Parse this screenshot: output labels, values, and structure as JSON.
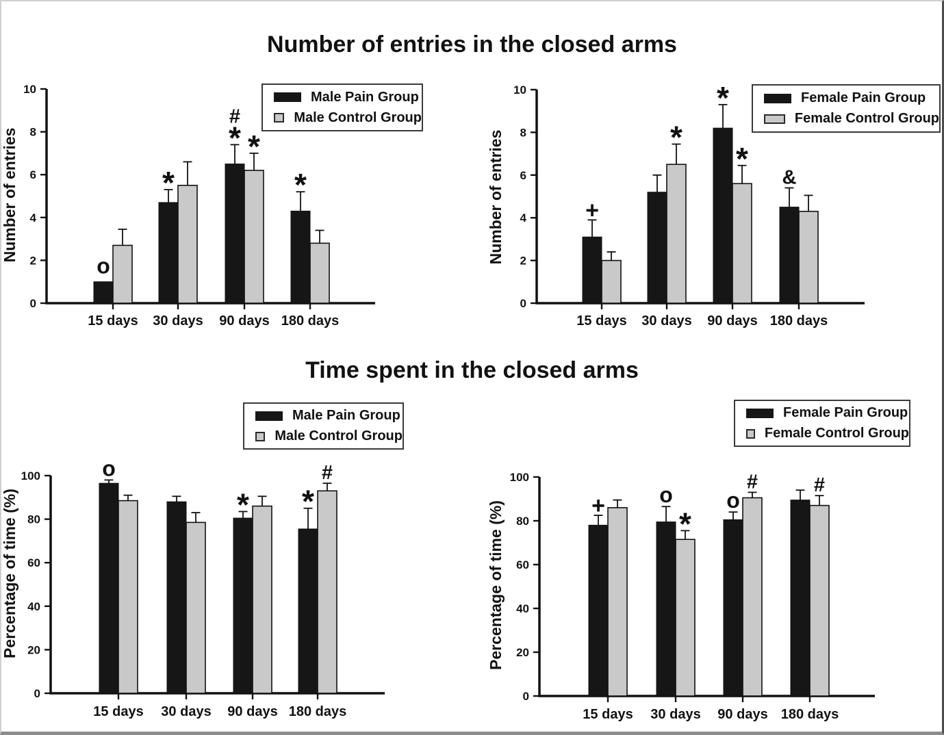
{
  "page": {
    "entries_title": "Number of entries in the closed arms",
    "time_title": "Time spent in the closed arms"
  },
  "colors": {
    "pain": "#161616",
    "control": "#c9c9c9",
    "axis": "#111111"
  },
  "chart_data": [
    {
      "id": "entries-male",
      "type": "bar",
      "section_title": "Number of entries in the closed arms",
      "ylabel": "Number of entries",
      "categories": [
        "15 days",
        "30 days",
        "90 days",
        "180 days"
      ],
      "ylim": [
        0,
        10
      ],
      "yticks": [
        0,
        2,
        4,
        6,
        8,
        10
      ],
      "grid": false,
      "legend_position": "top-right-inside",
      "series": [
        {
          "name": "Male Pain Group",
          "color": "#161616",
          "values": [
            1,
            4.7,
            6.5,
            4.3
          ],
          "errors": [
            0,
            0.6,
            0.9,
            0.9
          ],
          "annotations": [
            [
              "o"
            ],
            [
              "*"
            ],
            [
              "#",
              "*"
            ],
            [
              "*"
            ]
          ]
        },
        {
          "name": "Male Control Group",
          "color": "#c9c9c9",
          "values": [
            2.7,
            5.5,
            6.2,
            2.8
          ],
          "errors": [
            0.75,
            1.1,
            0.8,
            0.6
          ],
          "annotations": [
            [],
            [],
            [
              "*"
            ],
            []
          ]
        }
      ]
    },
    {
      "id": "entries-female",
      "type": "bar",
      "section_title": "Number of entries in the closed arms",
      "ylabel": "Number of entries",
      "categories": [
        "15 days",
        "30 days",
        "90 days",
        "180 days"
      ],
      "ylim": [
        0,
        10
      ],
      "yticks": [
        0,
        2,
        4,
        6,
        8,
        10
      ],
      "grid": false,
      "legend_position": "top-right-inside",
      "series": [
        {
          "name": "Female Pain Group",
          "color": "#161616",
          "values": [
            3.1,
            5.2,
            8.2,
            4.5
          ],
          "errors": [
            0.8,
            0.8,
            1.1,
            0.9
          ],
          "annotations": [
            [
              "+"
            ],
            [],
            [
              "*"
            ],
            [
              "&"
            ]
          ]
        },
        {
          "name": "Female Control Group",
          "color": "#c9c9c9",
          "values": [
            2,
            6.5,
            5.6,
            4.3
          ],
          "errors": [
            0.4,
            0.95,
            0.85,
            0.75
          ],
          "annotations": [
            [],
            [
              "*"
            ],
            [
              "*"
            ],
            []
          ]
        }
      ]
    },
    {
      "id": "time-male",
      "type": "bar",
      "section_title": "Time spent in the closed arms",
      "ylabel": "Percentage of time (%)",
      "categories": [
        "15 days",
        "30 days",
        "90 days",
        "180 days"
      ],
      "ylim": [
        0,
        100
      ],
      "yticks": [
        0,
        20,
        40,
        60,
        80,
        100
      ],
      "grid": false,
      "legend_position": "top-left-inside",
      "series": [
        {
          "name": "Male Pain Group",
          "color": "#161616",
          "values": [
            96.5,
            88,
            80.5,
            75.5
          ],
          "errors": [
            1.5,
            2.5,
            3,
            9.5
          ],
          "annotations": [
            [
              "o"
            ],
            [],
            [
              "*"
            ],
            [
              "*"
            ]
          ]
        },
        {
          "name": "Male Control Group",
          "color": "#c9c9c9",
          "values": [
            88.5,
            78.5,
            86,
            93
          ],
          "errors": [
            2.5,
            4.5,
            4.5,
            3.5
          ],
          "annotations": [
            [],
            [],
            [],
            [
              "#"
            ]
          ]
        }
      ]
    },
    {
      "id": "time-female",
      "type": "bar",
      "section_title": "Time spent in the closed arms",
      "ylabel": "Percentage of time (%)",
      "categories": [
        "15 days",
        "30 days",
        "90 days",
        "180 days"
      ],
      "ylim": [
        0,
        100
      ],
      "yticks": [
        0,
        20,
        40,
        60,
        80,
        100
      ],
      "grid": false,
      "legend_position": "top-right-inside",
      "series": [
        {
          "name": "Female Pain Group",
          "color": "#161616",
          "values": [
            78,
            79.5,
            80.5,
            89.5
          ],
          "errors": [
            4.5,
            7,
            3.5,
            4.5
          ],
          "annotations": [
            [
              "+"
            ],
            [
              "o"
            ],
            [
              "o"
            ],
            []
          ]
        },
        {
          "name": "Female Control Group",
          "color": "#c9c9c9",
          "values": [
            86,
            71.5,
            90.5,
            87
          ],
          "errors": [
            3.5,
            4,
            2.5,
            4.5
          ],
          "annotations": [
            [],
            [
              "*"
            ],
            [
              "#"
            ],
            [
              "#"
            ]
          ]
        }
      ]
    }
  ]
}
